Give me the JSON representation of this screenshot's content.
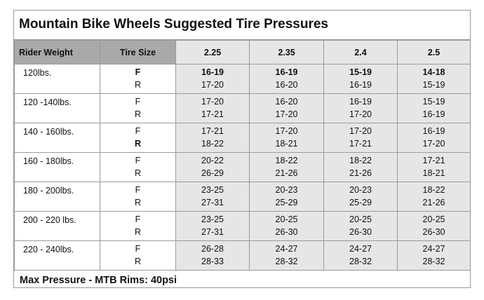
{
  "title": "Mountain Bike Wheels Suggested Tire Pressures",
  "headers": {
    "rider_weight": "Rider Weight",
    "tire_size": "Tire Size",
    "sizes": [
      "2.25",
      "2.35",
      "2.4",
      "2.5"
    ]
  },
  "rows": [
    {
      "weight": "120lbs.",
      "front": "F",
      "rear": "R",
      "f": [
        "16-19",
        "16-19",
        "15-19",
        "14-18"
      ],
      "r": [
        "17-20",
        "16-20",
        "16-19",
        "15-19"
      ]
    },
    {
      "weight": "120 -140lbs.",
      "front": "F",
      "rear": "R",
      "f": [
        "17-20",
        "16-20",
        "16-19",
        "15-19"
      ],
      "r": [
        "17-21",
        "17-20",
        "17-20",
        "16-19"
      ]
    },
    {
      "weight": "140 - 160lbs.",
      "front": "F",
      "rear": "R",
      "f": [
        "17-21",
        "17-20",
        "17-20",
        "16-19"
      ],
      "r": [
        "18-22",
        "18-21",
        "17-21",
        "17-20"
      ]
    },
    {
      "weight": "160 - 180lbs.",
      "front": "F",
      "rear": "R",
      "f": [
        "20-22",
        "18-22",
        "18-22",
        "17-21"
      ],
      "r": [
        "26-29",
        "21-26",
        "21-26",
        "18-21"
      ]
    },
    {
      "weight": "180 - 200lbs.",
      "front": "F",
      "rear": "R",
      "f": [
        "23-25",
        "20-23",
        "20-23",
        "18-22"
      ],
      "r": [
        "27-31",
        "25-29",
        "25-29",
        "21-26"
      ]
    },
    {
      "weight": "200 - 220 lbs.",
      "front": "F",
      "rear": "R",
      "f": [
        "23-25",
        "20-25",
        "20-25",
        "20-25"
      ],
      "r": [
        "27-31",
        "26-30",
        "26-30",
        "26-30"
      ]
    },
    {
      "weight": "220 - 240lbs.",
      "front": "F",
      "rear": "R",
      "f": [
        "26-28",
        "24-27",
        "24-27",
        "24-27"
      ],
      "r": [
        "28-33",
        "28-32",
        "28-32",
        "28-32"
      ]
    }
  ],
  "footer": "Max Pressure - MTB Rims: 40psi"
}
